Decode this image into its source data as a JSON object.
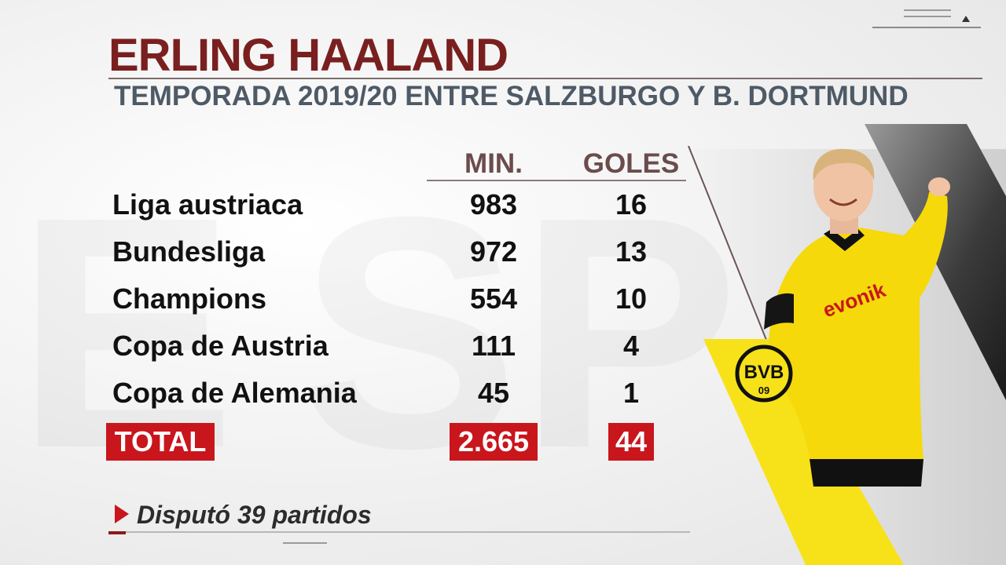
{
  "header": {
    "title": "ERLING HAALAND",
    "subtitle": "TEMPORADA 2019/20 ENTRE SALZBURGO Y B. DORTMUND"
  },
  "table": {
    "columns": [
      "MIN.",
      "GOLES"
    ],
    "rows": [
      {
        "label": "Liga austriaca",
        "min": "983",
        "goals": "16"
      },
      {
        "label": "Bundesliga",
        "min": "972",
        "goals": "13"
      },
      {
        "label": "Champions",
        "min": "554",
        "goals": "10"
      },
      {
        "label": "Copa de Austria",
        "min": "111",
        "goals": "4"
      },
      {
        "label": "Copa de Alemania",
        "min": "45",
        "goals": "1"
      }
    ],
    "total": {
      "label": "TOTAL",
      "min": "2.665",
      "goals": "44"
    }
  },
  "note": "Disputó 39 partidos",
  "badge": {
    "top": "BVB",
    "bottom": "09"
  },
  "sponsor": "evonik",
  "colors": {
    "title": "#7a1f1f",
    "subtitle": "#4e5a66",
    "accent_red": "#c8161c",
    "bvb_yellow": "#f7e21a",
    "bvb_black": "#111111"
  },
  "icons": {
    "note_marker": "triangle-right-icon",
    "corner": "menu-lines-icon"
  }
}
